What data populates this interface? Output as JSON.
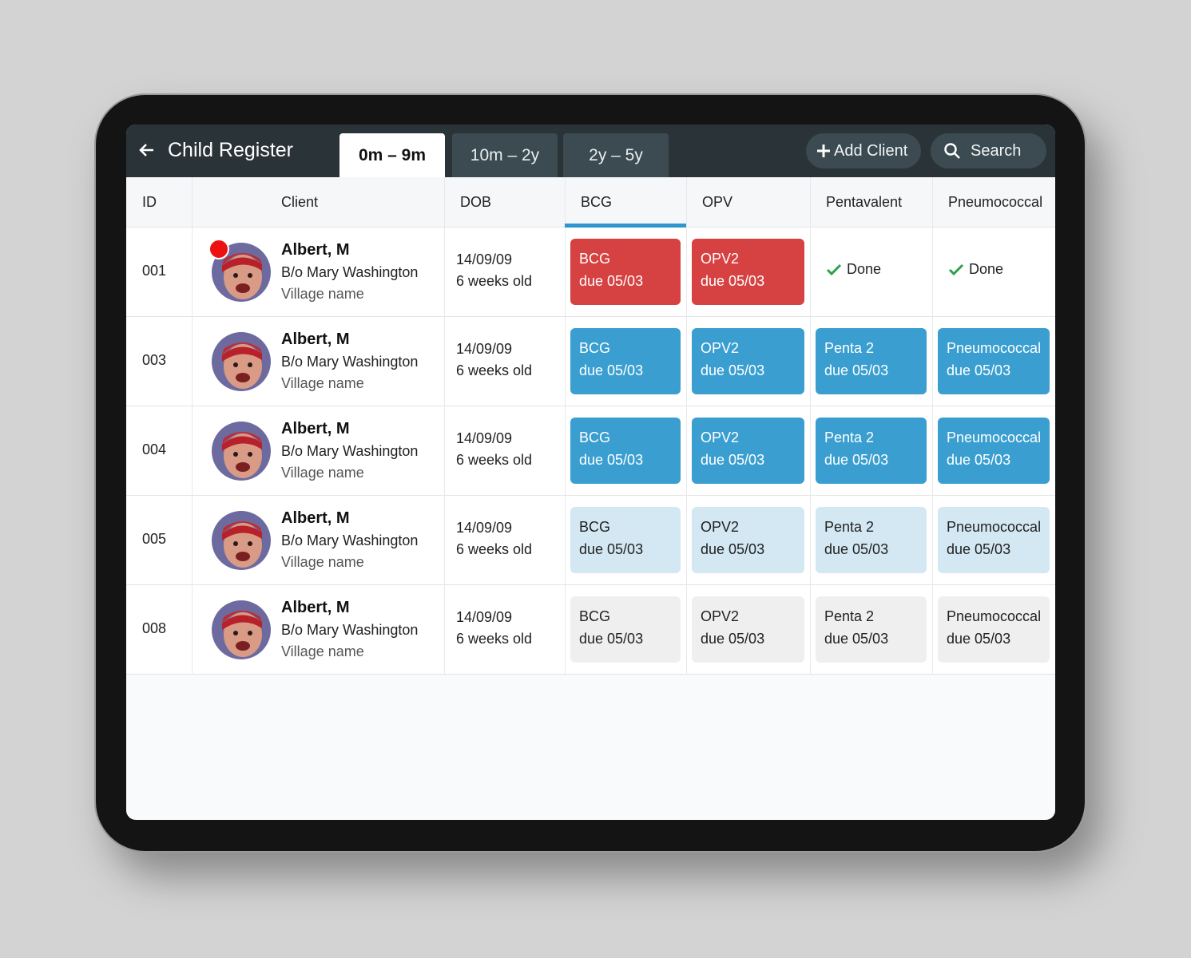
{
  "header": {
    "title": "Child Register",
    "tabs": [
      "0m – 9m",
      "10m – 2y",
      "2y – 5y"
    ],
    "add_button": "Add Client",
    "search": "Search"
  },
  "table": {
    "columns": [
      "ID",
      "Client",
      "DOB",
      "BCG",
      "OPV",
      "Pentavalent",
      "Pneumococcal"
    ],
    "rows": [
      {
        "id": "001",
        "name": "Albert, M",
        "parent": "B/o Mary Washington",
        "village": "Village name",
        "dob": "14/09/09",
        "age": "6 weeks old",
        "cells": [
          {
            "lines": [
              "BCG",
              "due 05/03"
            ],
            "color": "#d64141"
          },
          {
            "lines": [
              "OPV2",
              "due 05/03"
            ],
            "color": "#d64141"
          },
          {
            "lines": [
              "Done"
            ]
          },
          {
            "lines": [
              "Done"
            ]
          }
        ]
      },
      {
        "id": "003",
        "name": "Albert, M",
        "parent": "B/o Mary Washington",
        "village": "Village name",
        "dob": "14/09/09",
        "age": "6 weeks old",
        "cells": [
          {
            "lines": [
              "BCG",
              "due 05/03"
            ],
            "color": "#3a9fd0"
          },
          {
            "lines": [
              "OPV2",
              "due 05/03"
            ],
            "color": "#3a9fd0"
          },
          {
            "lines": [
              "Penta 2",
              "due 05/03"
            ],
            "color": "#3a9fd0"
          },
          {
            "lines": [
              "Pneumococcal",
              "due 05/03"
            ],
            "color": "#3a9fd0"
          }
        ]
      },
      {
        "id": "004",
        "name": "Albert, M",
        "parent": "B/o Mary Washington",
        "village": "Village name",
        "dob": "14/09/09",
        "age": "6 weeks old",
        "cells": [
          {
            "lines": [
              "BCG",
              "due 05/03"
            ],
            "color": "#3a9fd0"
          },
          {
            "lines": [
              "OPV2",
              "due 05/03"
            ],
            "color": "#3a9fd0"
          },
          {
            "lines": [
              "Penta 2",
              "due 05/03"
            ],
            "color": "#3a9fd0"
          },
          {
            "lines": [
              "Pneumococcal",
              "due 05/03"
            ],
            "color": "#3a9fd0"
          }
        ]
      },
      {
        "id": "005",
        "name": "Albert, M",
        "parent": "B/o Mary Washington",
        "village": "Village name",
        "dob": "14/09/09",
        "age": "6 weeks old",
        "cells": [
          {
            "lines": [
              "BCG",
              "due 05/03"
            ],
            "color": "#d3e8f3"
          },
          {
            "lines": [
              "OPV2",
              "due 05/03"
            ],
            "color": "#d3e8f3"
          },
          {
            "lines": [
              "Penta 2",
              "due 05/03"
            ],
            "color": "#d3e8f3"
          },
          {
            "lines": [
              "Pneumococcal",
              "due 05/03"
            ],
            "color": "#d3e8f3"
          }
        ]
      },
      {
        "id": "008",
        "name": "Albert, M",
        "parent": "B/o Mary Washington",
        "village": "Village name",
        "dob": "14/09/09",
        "age": "6 weeks old",
        "cells": [
          {
            "lines": [
              "BCG",
              "due 05/03"
            ],
            "color": "#efefef"
          },
          {
            "lines": [
              "OPV2",
              "due 05/03"
            ],
            "color": "#efefef"
          },
          {
            "lines": [
              "Penta 2",
              "due 05/03"
            ],
            "color": "#efefef"
          },
          {
            "lines": [
              "Pneumococcal",
              "due 05/03"
            ],
            "color": "#efefef"
          }
        ]
      }
    ]
  }
}
